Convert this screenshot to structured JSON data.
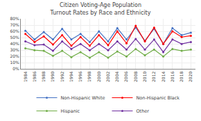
{
  "chart_data": {
    "type": "line",
    "title": "Citizen Voting-Age Population\nTurnout Rates by Race and Ethnicity",
    "x": [
      1984,
      1986,
      1988,
      1990,
      1992,
      1994,
      1996,
      1998,
      2000,
      2002,
      2004,
      2006,
      2008,
      2010,
      2012,
      2014,
      2016,
      2018,
      2020
    ],
    "series": [
      {
        "name": "Non-Hispanic White",
        "color": "#4472C4",
        "values": [
          61,
          47,
          59,
          47,
          64,
          47,
          56,
          43,
          60,
          44,
          65,
          47,
          66,
          45,
          64,
          40,
          65,
          54,
          58
        ]
      },
      {
        "name": "Non-Hispanic Black",
        "color": "#FF0000",
        "values": [
          56,
          43,
          52,
          39,
          54,
          37,
          51,
          37,
          54,
          38,
          60,
          41,
          69,
          44,
          66,
          40,
          60,
          51,
          53
        ]
      },
      {
        "name": "Hispanic",
        "color": "#70AD47",
        "values": [
          33,
          30,
          29,
          21,
          29,
          19,
          27,
          18,
          27,
          18,
          28,
          20,
          32,
          22,
          31,
          20,
          32,
          29,
          31
        ]
      },
      {
        "name": "Other",
        "color": "#7030A0",
        "values": [
          44,
          38,
          39,
          29,
          44,
          32,
          40,
          30,
          40,
          30,
          44,
          31,
          48,
          31,
          47,
          27,
          47,
          40,
          43
        ]
      }
    ],
    "xlim": [
      1983,
      2021
    ],
    "xticks": [
      1984,
      1986,
      1988,
      1990,
      1992,
      1994,
      1996,
      1998,
      2000,
      2002,
      2004,
      2006,
      2008,
      2010,
      2012,
      2014,
      2016,
      2018,
      2020
    ],
    "ylim": [
      0,
      80
    ],
    "yticks": [
      {
        "value": 0,
        "label": "0%"
      },
      {
        "value": 10,
        "label": "10%"
      },
      {
        "value": 20,
        "label": "20%"
      },
      {
        "value": 30,
        "label": "30%"
      },
      {
        "value": 40,
        "label": "40%"
      },
      {
        "value": 50,
        "label": "50%"
      },
      {
        "value": 60,
        "label": "60%"
      },
      {
        "value": 70,
        "label": "70%"
      },
      {
        "value": 80,
        "label": "80%"
      }
    ],
    "grid": true,
    "legend": "bottom",
    "marker": "circle"
  }
}
